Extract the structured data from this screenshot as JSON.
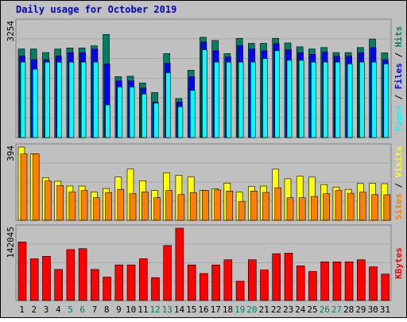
{
  "chart_data": [
    {
      "type": "bar",
      "title": "Daily usage for October 2019",
      "panel": "top",
      "y_max_label": "3254",
      "ylim": [
        0,
        3254
      ],
      "grid": true,
      "legend": [
        "Pages",
        "Files",
        "Hits"
      ],
      "legend_separator": " / ",
      "categories": [
        "1",
        "2",
        "3",
        "4",
        "5",
        "6",
        "7",
        "8",
        "9",
        "10",
        "11",
        "12",
        "13",
        "14",
        "15",
        "16",
        "17",
        "18",
        "19",
        "20",
        "21",
        "22",
        "23",
        "24",
        "25",
        "26",
        "27",
        "28",
        "29",
        "30",
        "31"
      ],
      "series": [
        {
          "name": "Hits",
          "color": "#008060",
          "values": [
            2500,
            2500,
            2400,
            2500,
            2530,
            2530,
            2590,
            2910,
            1720,
            1730,
            1540,
            1270,
            2370,
            1100,
            1900,
            2830,
            2740,
            2370,
            2800,
            2660,
            2660,
            2800,
            2670,
            2560,
            2500,
            2540,
            2400,
            2400,
            2540,
            2780,
            2390
          ]
        },
        {
          "name": "Files",
          "color": "#0000ff",
          "values": [
            2300,
            2200,
            2200,
            2300,
            2400,
            2400,
            2500,
            2080,
            1600,
            1600,
            1400,
            1000,
            2100,
            1000,
            1720,
            2700,
            2450,
            2280,
            2600,
            2500,
            2450,
            2650,
            2480,
            2400,
            2350,
            2420,
            2300,
            2300,
            2400,
            2540,
            2200
          ]
        },
        {
          "name": "Pages",
          "color": "#00ffff",
          "values": [
            2130,
            1930,
            2130,
            2130,
            2130,
            2130,
            2130,
            920,
            1430,
            1430,
            1230,
            970,
            1830,
            870,
            1330,
            2480,
            2130,
            2130,
            2130,
            2130,
            2230,
            2450,
            2180,
            2180,
            2130,
            2130,
            2130,
            2080,
            2130,
            2130,
            2080
          ]
        }
      ]
    },
    {
      "type": "bar",
      "panel": "middle",
      "y_max_label": "394",
      "ylim": [
        0,
        394
      ],
      "grid": true,
      "legend": [
        "Sites",
        "Visits"
      ],
      "legend_separator": " / ",
      "series": [
        {
          "name": "Visits",
          "color": "#ffff00",
          "values": [
            394,
            357,
            229,
            210,
            184,
            184,
            152,
            171,
            233,
            276,
            213,
            160,
            255,
            243,
            234,
            161,
            170,
            200,
            151,
            182,
            184,
            275,
            223,
            237,
            232,
            192,
            178,
            166,
            198,
            199,
            197
          ]
        },
        {
          "name": "Sites",
          "color": "#ff8000",
          "values": [
            357,
            357,
            212,
            187,
            152,
            160,
            121,
            149,
            166,
            143,
            153,
            121,
            160,
            138,
            149,
            161,
            163,
            157,
            101,
            157,
            150,
            175,
            121,
            121,
            128,
            143,
            160,
            145,
            151,
            138,
            137
          ]
        }
      ]
    },
    {
      "type": "bar",
      "panel": "bottom",
      "y_max_label": "142045",
      "ylim": [
        0,
        142045
      ],
      "grid": true,
      "legend": [
        "KBytes"
      ],
      "series": [
        {
          "name": "KBytes",
          "color": "#ff0000",
          "values": [
            115000,
            82000,
            87000,
            61000,
            100000,
            102000,
            61000,
            46000,
            70000,
            70000,
            82000,
            45000,
            108000,
            142045,
            70000,
            53000,
            70000,
            80000,
            38000,
            80000,
            60000,
            92000,
            93000,
            68000,
            57000,
            76000,
            76000,
            76000,
            80000,
            66000,
            52000
          ]
        }
      ]
    }
  ],
  "x_tick_colors": {
    "weekday": "#000000",
    "weekend": "#008060"
  },
  "weekend_days": [
    "5",
    "6",
    "12",
    "13",
    "19",
    "20",
    "26",
    "27"
  ]
}
